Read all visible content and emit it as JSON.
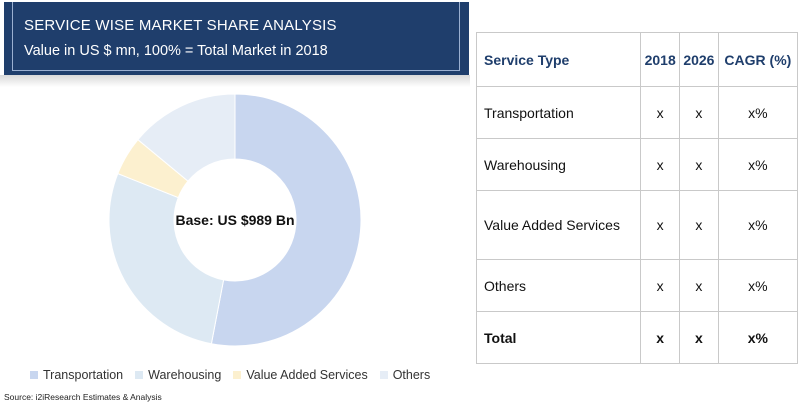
{
  "header": {
    "title": "SERVICE WISE MARKET SHARE ANALYSIS",
    "subtitle": "Value in US $ mn, 100% = Total Market in 2018"
  },
  "chart_data": {
    "type": "pie",
    "center_label": "Base: US $989 Bn",
    "categories": [
      "Transportation",
      "Warehousing",
      "Value Added Services",
      "Others"
    ],
    "values": [
      53,
      28,
      5,
      14
    ],
    "colors": [
      "#c8d6ef",
      "#dde9f3",
      "#fcf0cf",
      "#e6edf6"
    ],
    "legend_position": "bottom"
  },
  "legend": [
    {
      "label": "Transportation",
      "color": "#c8d6ef"
    },
    {
      "label": "Warehousing",
      "color": "#dde9f3"
    },
    {
      "label": "Value Added Services",
      "color": "#fcf0cf"
    },
    {
      "label": "Others",
      "color": "#e6edf6"
    }
  ],
  "source": "Source: i2iResearch Estimates & Analysis",
  "table": {
    "headers": [
      "Service Type",
      "2018",
      "2026",
      "CAGR (%)"
    ],
    "rows": [
      {
        "service": "Transportation",
        "y2018": "x",
        "y2026": "x",
        "cagr": "x%"
      },
      {
        "service": "Warehousing",
        "y2018": "x",
        "y2026": "x",
        "cagr": "x%"
      },
      {
        "service": "Value Added Services",
        "y2018": "x",
        "y2026": "x",
        "cagr": "x%"
      },
      {
        "service": "Others",
        "y2018": "x",
        "y2026": "x",
        "cagr": "x%"
      },
      {
        "service": "Total",
        "y2018": "x",
        "y2026": "x",
        "cagr": "x%"
      }
    ]
  }
}
